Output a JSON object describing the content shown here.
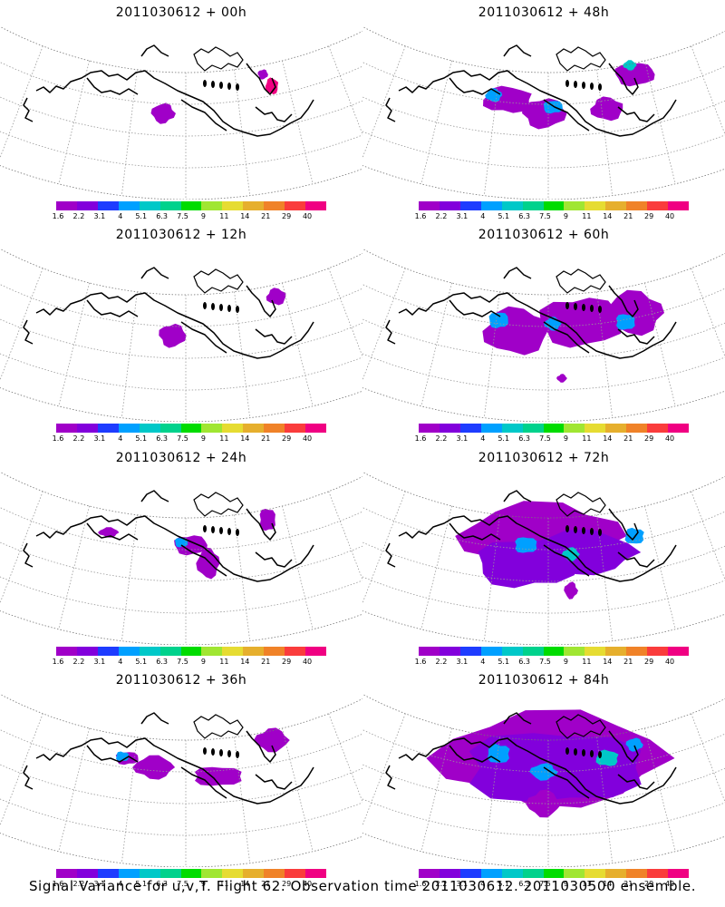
{
  "caption": "Signal Variance for u,v,T. Flight 62. Observation time 2011030612. 2011030500 ensemble.",
  "colorbar": {
    "colors": [
      "#a000c8",
      "#8200dc",
      "#1e3cff",
      "#00a0ff",
      "#00c8c8",
      "#00d28c",
      "#00dc00",
      "#a0e632",
      "#e6dc32",
      "#e6af2d",
      "#f08228",
      "#fa3c3c",
      "#f00082"
    ],
    "labels": [
      "1.6",
      "2.2",
      "3.1",
      "4",
      "5.1",
      "6.3",
      "7.5",
      "9",
      "11",
      "14",
      "21",
      "29",
      "40"
    ]
  },
  "panels": [
    {
      "title": "2011030612 + 00h",
      "lead_hours": 0
    },
    {
      "title": "2011030612 + 48h",
      "lead_hours": 48
    },
    {
      "title": "2011030612 + 12h",
      "lead_hours": 12
    },
    {
      "title": "2011030612 + 60h",
      "lead_hours": 60
    },
    {
      "title": "2011030612 + 24h",
      "lead_hours": 24
    },
    {
      "title": "2011030612 + 72h",
      "lead_hours": 72
    },
    {
      "title": "2011030612 + 36h",
      "lead_hours": 36
    },
    {
      "title": "2011030612 + 84h",
      "lead_hours": 84
    }
  ]
}
